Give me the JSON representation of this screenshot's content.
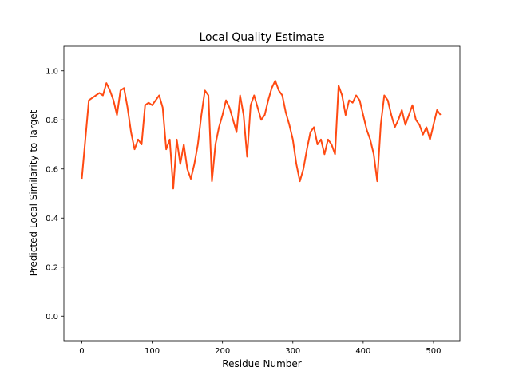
{
  "chart_data": {
    "type": "line",
    "title": "Local Quality Estimate",
    "xlabel": "Residue Number",
    "ylabel": "Predicted Local Similarity to Target",
    "x": [
      0,
      5,
      10,
      15,
      20,
      25,
      30,
      35,
      40,
      45,
      50,
      55,
      60,
      65,
      70,
      75,
      80,
      85,
      90,
      95,
      100,
      105,
      110,
      115,
      120,
      125,
      130,
      135,
      140,
      145,
      150,
      155,
      160,
      165,
      170,
      175,
      180,
      185,
      190,
      195,
      200,
      205,
      210,
      215,
      220,
      225,
      230,
      235,
      240,
      245,
      250,
      255,
      260,
      265,
      270,
      275,
      280,
      285,
      290,
      295,
      300,
      305,
      310,
      315,
      320,
      325,
      330,
      335,
      340,
      345,
      350,
      355,
      360,
      365,
      370,
      375,
      380,
      385,
      390,
      395,
      400,
      405,
      410,
      415,
      420,
      425,
      430,
      435,
      440,
      445,
      450,
      455,
      460,
      465,
      470,
      475,
      480,
      485,
      490,
      495,
      500,
      505,
      510
    ],
    "series": [
      {
        "color": "#ff4a12",
        "values": [
          0.56,
          0.72,
          0.88,
          0.89,
          0.9,
          0.91,
          0.9,
          0.95,
          0.92,
          0.88,
          0.82,
          0.92,
          0.93,
          0.85,
          0.75,
          0.68,
          0.72,
          0.7,
          0.86,
          0.87,
          0.86,
          0.88,
          0.9,
          0.85,
          0.68,
          0.72,
          0.52,
          0.72,
          0.62,
          0.7,
          0.6,
          0.56,
          0.62,
          0.7,
          0.82,
          0.92,
          0.9,
          0.55,
          0.7,
          0.77,
          0.82,
          0.88,
          0.85,
          0.8,
          0.75,
          0.9,
          0.82,
          0.65,
          0.86,
          0.9,
          0.85,
          0.8,
          0.82,
          0.88,
          0.93,
          0.96,
          0.92,
          0.9,
          0.83,
          0.78,
          0.72,
          0.62,
          0.55,
          0.6,
          0.68,
          0.75,
          0.77,
          0.7,
          0.72,
          0.66,
          0.72,
          0.7,
          0.66,
          0.94,
          0.9,
          0.82,
          0.88,
          0.87,
          0.9,
          0.88,
          0.82,
          0.76,
          0.72,
          0.66,
          0.55,
          0.78,
          0.9,
          0.88,
          0.82,
          0.77,
          0.8,
          0.84,
          0.78,
          0.82,
          0.86,
          0.8,
          0.78,
          0.74,
          0.77,
          0.72,
          0.78,
          0.84,
          0.82
        ]
      }
    ],
    "xlim": [
      -25.5,
      537.5
    ],
    "ylim": [
      -0.1,
      1.1
    ],
    "xticks": [
      0,
      100,
      200,
      300,
      400,
      500
    ],
    "yticks": [
      {
        "value": 0,
        "label": "0.0"
      },
      0.2,
      0.4,
      0.6,
      0.8,
      {
        "value": 1,
        "label": "1.0"
      }
    ],
    "grid": false
  }
}
